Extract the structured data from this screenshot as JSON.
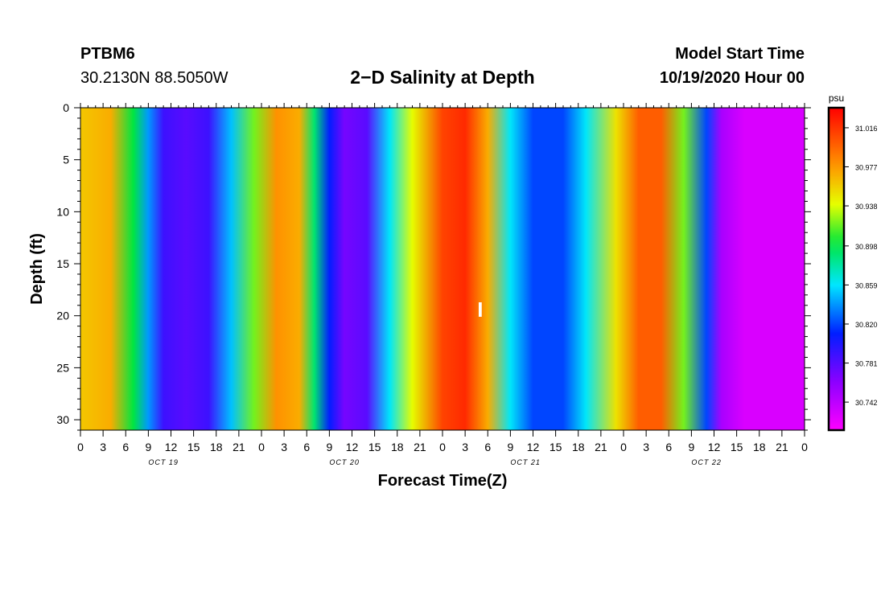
{
  "header": {
    "station": "PTBM6",
    "coordinates": "30.2130N 88.5050W",
    "title": "2−D Salinity at Depth",
    "start_label": "Model Start Time",
    "start_value": "10/19/2020 Hour 00"
  },
  "chart_data": {
    "type": "heatmap",
    "title": "2−D Salinity at Depth",
    "xlabel": "Forecast Time(Z)",
    "ylabel": "Depth (ft)",
    "x_unit": "hours since 10/19/2020 Hour 00",
    "xlim": [
      0,
      96
    ],
    "ylim": [
      0,
      31
    ],
    "y_inverted": true,
    "x_tick_labels": [
      "0",
      "3",
      "6",
      "9",
      "12",
      "15",
      "18",
      "21",
      "0",
      "3",
      "6",
      "9",
      "12",
      "15",
      "18",
      "21",
      "0",
      "3",
      "6",
      "9",
      "12",
      "15",
      "18",
      "21",
      "0",
      "3",
      "6",
      "9",
      "12",
      "15",
      "18",
      "21",
      "0"
    ],
    "y_ticks": [
      0,
      5,
      10,
      15,
      20,
      25,
      30
    ],
    "day_labels": [
      {
        "label": "OCT 19",
        "hour": 11
      },
      {
        "label": "OCT 20",
        "hour": 35
      },
      {
        "label": "OCT 21",
        "hour": 59
      },
      {
        "label": "OCT 22",
        "hour": 83
      }
    ],
    "colorbar": {
      "unit": "psu",
      "min": 30.714,
      "max": 31.036,
      "tick_values": [
        31.016,
        30.977,
        30.938,
        30.898,
        30.859,
        30.82,
        30.781,
        30.742
      ],
      "tick_labels": [
        "31.016",
        "30.977",
        "30.938",
        "30.898",
        "30.859",
        "30.820",
        "30.781",
        "30.742"
      ]
    },
    "time_profile": [
      {
        "hour": 0,
        "value": 30.96
      },
      {
        "hour": 4,
        "value": 30.97
      },
      {
        "hour": 7,
        "value": 30.9
      },
      {
        "hour": 9,
        "value": 30.84
      },
      {
        "hour": 11,
        "value": 30.79
      },
      {
        "hour": 14,
        "value": 30.78
      },
      {
        "hour": 17,
        "value": 30.79
      },
      {
        "hour": 20,
        "value": 30.85
      },
      {
        "hour": 23,
        "value": 30.92
      },
      {
        "hour": 26,
        "value": 30.98
      },
      {
        "hour": 29,
        "value": 30.97
      },
      {
        "hour": 31,
        "value": 30.89
      },
      {
        "hour": 33,
        "value": 30.81
      },
      {
        "hour": 35,
        "value": 30.77
      },
      {
        "hour": 38,
        "value": 30.78
      },
      {
        "hour": 41,
        "value": 30.86
      },
      {
        "hour": 44,
        "value": 30.94
      },
      {
        "hour": 48,
        "value": 31.01
      },
      {
        "hour": 51,
        "value": 31.02
      },
      {
        "hour": 54,
        "value": 30.97
      },
      {
        "hour": 57,
        "value": 30.86
      },
      {
        "hour": 60,
        "value": 30.82
      },
      {
        "hour": 64,
        "value": 30.82
      },
      {
        "hour": 67,
        "value": 30.86
      },
      {
        "hour": 71,
        "value": 30.95
      },
      {
        "hour": 74,
        "value": 31.0
      },
      {
        "hour": 77,
        "value": 31.0
      },
      {
        "hour": 80,
        "value": 30.92
      },
      {
        "hour": 83,
        "value": 30.82
      },
      {
        "hour": 85,
        "value": 30.75
      },
      {
        "hour": 88,
        "value": 30.73
      },
      {
        "hour": 96,
        "value": 30.73
      }
    ],
    "annotation": {
      "text": "I",
      "hour": 53,
      "depth": 19.4
    }
  }
}
